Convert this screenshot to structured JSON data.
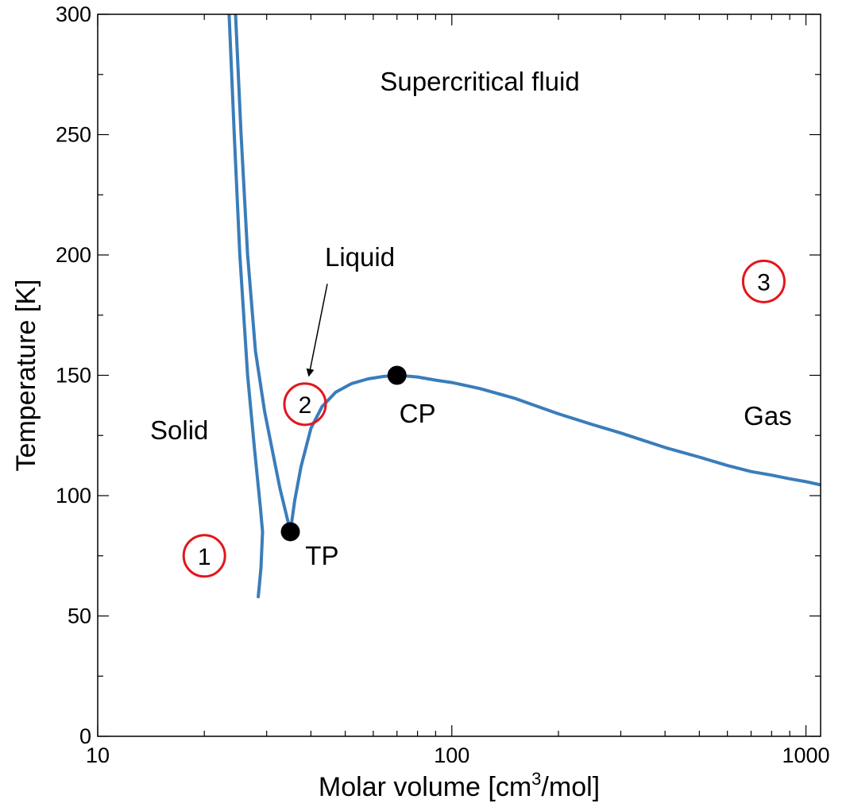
{
  "chart_data": {
    "type": "line",
    "title": "",
    "xlabel": "Molar volume [cm",
    "xlabel_sup": "3",
    "xlabel_end": "/mol]",
    "ylabel": "Temperature [K]",
    "x_scale": "log",
    "xlim": [
      10,
      1100
    ],
    "ylim": [
      0,
      300
    ],
    "x_ticks": [
      {
        "value": 10,
        "label": "10"
      },
      {
        "value": 100,
        "label": "100"
      },
      {
        "value": 1000,
        "label": "1000"
      }
    ],
    "y_ticks": [
      {
        "value": 0,
        "label": "0"
      },
      {
        "value": 50,
        "label": "50"
      },
      {
        "value": 100,
        "label": "100"
      },
      {
        "value": 150,
        "label": "150"
      },
      {
        "value": 200,
        "label": "200"
      },
      {
        "value": 250,
        "label": "250"
      },
      {
        "value": 300,
        "label": "300"
      }
    ],
    "grid": false,
    "line_color": "#3a7dba",
    "series": [
      {
        "id": "solid-boundary",
        "x": [
          23.5,
          24.3,
          25.2,
          26.5,
          27.7,
          28.8,
          29.2,
          28.9,
          28.4
        ],
        "y": [
          300,
          250,
          200,
          150,
          120,
          95,
          85,
          70,
          58
        ]
      },
      {
        "id": "melting-boundary",
        "x": [
          24.5,
          25.4,
          26.5,
          27.9,
          29.6,
          31.3,
          32.7,
          34.1,
          35.0
        ],
        "y": [
          300,
          250,
          200,
          160,
          135,
          117,
          103,
          92,
          85
        ]
      },
      {
        "id": "coexistence-curve",
        "x": [
          35.0,
          36.0,
          37.5,
          40.0,
          43.0,
          47.0,
          52.0,
          58.0,
          64.0,
          70.0,
          80.0,
          90.0,
          100.0,
          120.0,
          150.0,
          200.0,
          250.0,
          300.0,
          400.0,
          500.0,
          600.0,
          700.0,
          800.0,
          900.0,
          1000.0,
          1100.0
        ],
        "y": [
          85,
          98,
          112,
          128,
          137,
          143,
          146.5,
          148.5,
          149.5,
          150,
          149.3,
          148,
          147,
          144.5,
          140.5,
          134,
          129.5,
          126,
          120,
          116,
          112.5,
          110,
          108.5,
          107,
          105.8,
          104.5
        ]
      }
    ],
    "points": [
      {
        "label": "TP",
        "x": 35.0,
        "y": 85
      },
      {
        "label": "CP",
        "x": 70.0,
        "y": 150
      }
    ],
    "annotations": [
      {
        "text": "Supercritical fluid",
        "x": 120,
        "y": 272
      },
      {
        "text": "Liquid",
        "x": 55,
        "y": 199
      },
      {
        "text": "Solid",
        "x": 17,
        "y": 127
      },
      {
        "text": "Gas",
        "x": 780,
        "y": 133
      },
      {
        "text": "TP",
        "x": 43,
        "y": 75
      },
      {
        "text": "CP",
        "x": 80,
        "y": 134
      }
    ],
    "arrow": {
      "from": {
        "x": 44.5,
        "y": 188
      },
      "to": {
        "x": 39.5,
        "y": 150
      }
    },
    "circled_markers": [
      {
        "text": "1",
        "x": 20,
        "y": 75
      },
      {
        "text": "2",
        "x": 38.5,
        "y": 138
      },
      {
        "text": "3",
        "x": 760,
        "y": 189
      }
    ],
    "marker_circle_color": "#e3161c"
  }
}
